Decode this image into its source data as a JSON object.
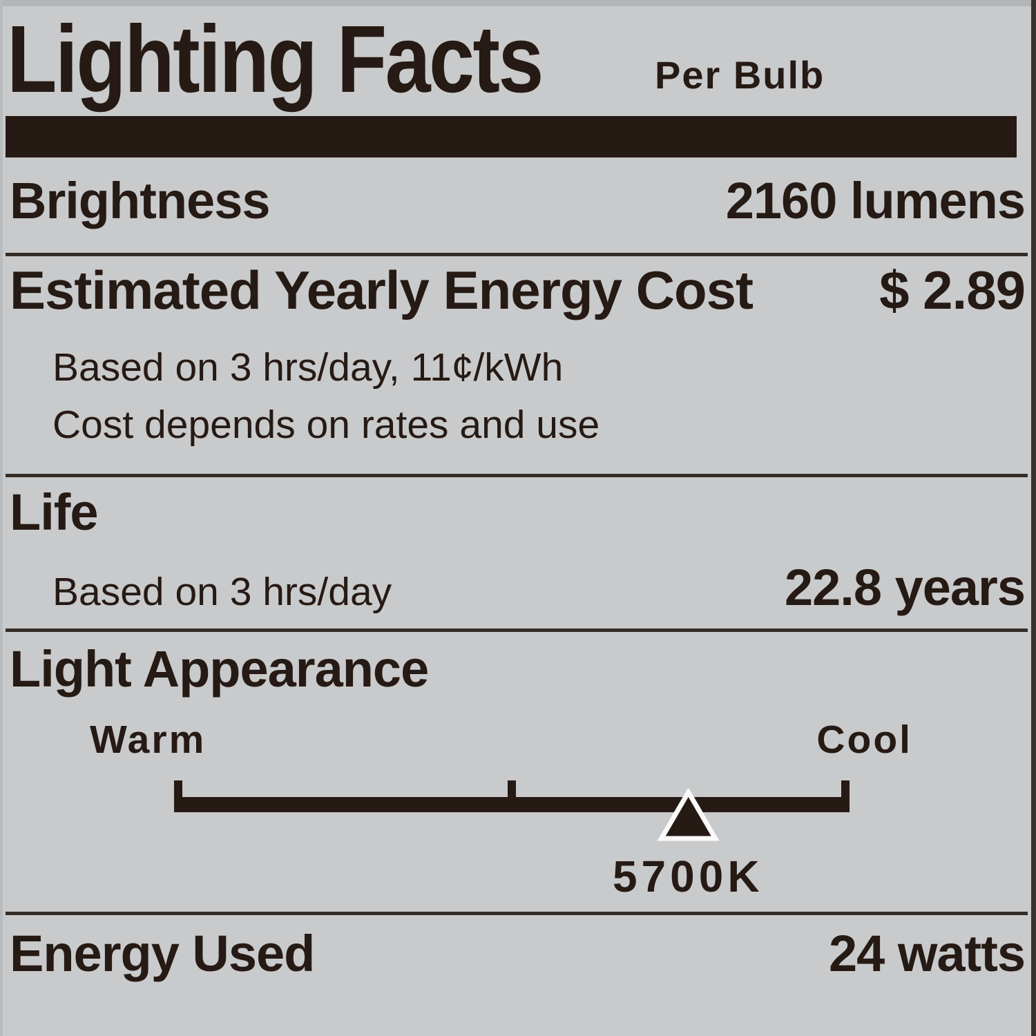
{
  "colors": {
    "background": "#c9cacb",
    "ink": "#261a14",
    "marker_outline": "#fafafa"
  },
  "header": {
    "title": "Lighting Facts",
    "per_unit": "Per Bulb"
  },
  "brightness": {
    "label": "Brightness",
    "value": "2160 lumens"
  },
  "energy_cost": {
    "label": "Estimated Yearly Energy Cost",
    "value": "$ 2.89",
    "note1": "Based on 3 hrs/day, 11¢/kWh",
    "note2": "Cost depends on rates and use"
  },
  "life": {
    "label": "Life",
    "basis": "Based on 3 hrs/day",
    "value": "22.8 years"
  },
  "light_appearance": {
    "label": "Light Appearance",
    "warm_label": "Warm",
    "cool_label": "Cool",
    "marker_value": "5700K",
    "marker_position_pct": 76.1
  },
  "energy_used": {
    "label": "Energy Used",
    "value": "24 watts"
  }
}
